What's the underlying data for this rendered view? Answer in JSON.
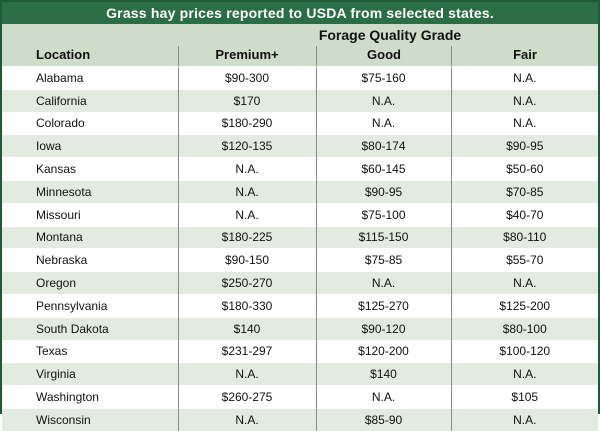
{
  "title": "Grass hay prices reported to USDA from selected states.",
  "group_header": "Forage Quality Grade",
  "columns": [
    "Location",
    "Premium+",
    "Good",
    "Fair"
  ],
  "rows": [
    {
      "location": "Alabama",
      "premium": "$90-300",
      "good": "$75-160",
      "fair": "N.A."
    },
    {
      "location": "California",
      "premium": "$170",
      "good": "N.A.",
      "fair": "N.A."
    },
    {
      "location": "Colorado",
      "premium": "$180-290",
      "good": "N.A.",
      "fair": "N.A."
    },
    {
      "location": "Iowa",
      "premium": "$120-135",
      "good": "$80-174",
      "fair": "$90-95"
    },
    {
      "location": "Kansas",
      "premium": "N.A.",
      "good": "$60-145",
      "fair": "$50-60"
    },
    {
      "location": "Minnesota",
      "premium": "N.A.",
      "good": "$90-95",
      "fair": "$70-85"
    },
    {
      "location": "Missouri",
      "premium": "N.A.",
      "good": "$75-100",
      "fair": "$40-70"
    },
    {
      "location": "Montana",
      "premium": "$180-225",
      "good": "$115-150",
      "fair": "$80-110"
    },
    {
      "location": "Nebraska",
      "premium": "$90-150",
      "good": "$75-85",
      "fair": "$55-70"
    },
    {
      "location": "Oregon",
      "premium": "$250-270",
      "good": "N.A.",
      "fair": "N.A."
    },
    {
      "location": "Pennsylvania",
      "premium": "$180-330",
      "good": "$125-270",
      "fair": "$125-200"
    },
    {
      "location": "South Dakota",
      "premium": "$140",
      "good": "$90-120",
      "fair": "$80-100"
    },
    {
      "location": "Texas",
      "premium": "$231-297",
      "good": "$120-200",
      "fair": "$100-120"
    },
    {
      "location": "Virginia",
      "premium": "N.A.",
      "good": "$140",
      "fair": "N.A."
    },
    {
      "location": "Washington",
      "premium": "$260-275",
      "good": "N.A.",
      "fair": "$105"
    },
    {
      "location": "Wisconsin",
      "premium": "N.A.",
      "good": "$85-90",
      "fair": "N.A."
    }
  ],
  "colors": {
    "title_bg": "#2b6e45",
    "header_bg": "#cfdcc9",
    "stripe": "#e3ebe0",
    "border": "#1e5a36"
  }
}
